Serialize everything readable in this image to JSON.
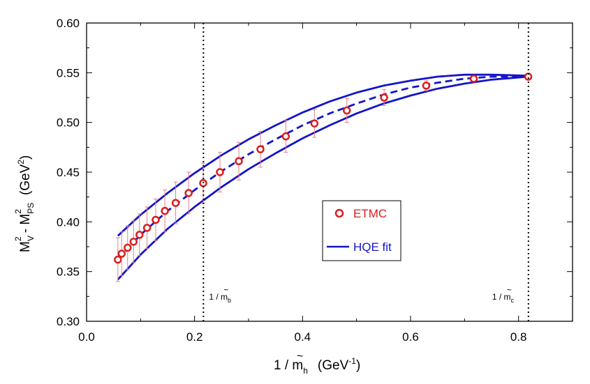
{
  "chart_data": {
    "type": "scatter",
    "xlim": [
      0.0,
      0.9
    ],
    "ylim": [
      0.3,
      0.6
    ],
    "x_ticks": [
      "0.0",
      "0.2",
      "0.4",
      "0.6",
      "0.8"
    ],
    "y_ticks": [
      "0.30",
      "0.35",
      "0.40",
      "0.45",
      "0.50",
      "0.55",
      "0.60"
    ],
    "x_tick_values": [
      0.0,
      0.2,
      0.4,
      0.6,
      0.8
    ],
    "y_tick_values": [
      0.3,
      0.35,
      0.4,
      0.45,
      0.5,
      0.55,
      0.6
    ],
    "xlabel": {
      "pre": "1 / ",
      "tilde": "~",
      "m": "m",
      "m_sub": "h",
      "units_pre": "(GeV",
      "units_sup": "-1",
      "units_post": ")"
    },
    "ylabel": {
      "mv": "M",
      "mv_sub": "V",
      "mv_sup": "2",
      "minus": " - M",
      "mps_sub": "PS",
      "mps_sup": "2",
      "units_pre": "(GeV",
      "units_sup": "2",
      "units_post": ")"
    },
    "vertical_lines": [
      {
        "x": 0.2164,
        "label_pre": "1 / ",
        "label_tilde": "~",
        "label_m": "m",
        "label_sub": "b"
      },
      {
        "x": 0.8183,
        "label_pre": "1 / ",
        "label_tilde": "~",
        "label_m": "m",
        "label_sub": "c"
      }
    ],
    "legend": {
      "etmc": "ETMC",
      "hqe": "HQE fit"
    },
    "colors": {
      "etmc": "#d81e1e",
      "hqe": "#1414c8",
      "errorbar": "#e88080"
    },
    "series": [
      {
        "name": "ETMC",
        "marker": "circle",
        "points": [
          {
            "x": 0.058,
            "y": 0.362,
            "err": 0.022
          },
          {
            "x": 0.065,
            "y": 0.368,
            "err": 0.022
          },
          {
            "x": 0.076,
            "y": 0.374,
            "err": 0.022
          },
          {
            "x": 0.087,
            "y": 0.38,
            "err": 0.021
          },
          {
            "x": 0.098,
            "y": 0.387,
            "err": 0.021
          },
          {
            "x": 0.112,
            "y": 0.394,
            "err": 0.021
          },
          {
            "x": 0.128,
            "y": 0.402,
            "err": 0.021
          },
          {
            "x": 0.145,
            "y": 0.411,
            "err": 0.021
          },
          {
            "x": 0.165,
            "y": 0.419,
            "err": 0.021
          },
          {
            "x": 0.189,
            "y": 0.429,
            "err": 0.021
          },
          {
            "x": 0.216,
            "y": 0.439,
            "err": 0.02
          },
          {
            "x": 0.247,
            "y": 0.45,
            "err": 0.02
          },
          {
            "x": 0.282,
            "y": 0.461,
            "err": 0.019
          },
          {
            "x": 0.322,
            "y": 0.473,
            "err": 0.018
          },
          {
            "x": 0.369,
            "y": 0.486,
            "err": 0.016
          },
          {
            "x": 0.422,
            "y": 0.499,
            "err": 0.014
          },
          {
            "x": 0.482,
            "y": 0.512,
            "err": 0.012
          },
          {
            "x": 0.551,
            "y": 0.525,
            "err": 0.008
          },
          {
            "x": 0.629,
            "y": 0.537,
            "err": 0.005
          },
          {
            "x": 0.717,
            "y": 0.544,
            "err": 0.003
          },
          {
            "x": 0.818,
            "y": 0.546,
            "err": 0.0
          }
        ]
      },
      {
        "name": "HQE fit",
        "style": "dashed",
        "points": [
          [
            0.058,
            0.362
          ],
          [
            0.1,
            0.387
          ],
          [
            0.15,
            0.411
          ],
          [
            0.2,
            0.432
          ],
          [
            0.25,
            0.451
          ],
          [
            0.3,
            0.468
          ],
          [
            0.35,
            0.483
          ],
          [
            0.4,
            0.497
          ],
          [
            0.45,
            0.509
          ],
          [
            0.5,
            0.519
          ],
          [
            0.55,
            0.528
          ],
          [
            0.6,
            0.535
          ],
          [
            0.65,
            0.54
          ],
          [
            0.7,
            0.544
          ],
          [
            0.75,
            0.546
          ],
          [
            0.818,
            0.546
          ]
        ]
      },
      {
        "name": "HQE fit upper band",
        "style": "solid",
        "points": [
          [
            0.058,
            0.386
          ],
          [
            0.1,
            0.407
          ],
          [
            0.15,
            0.429
          ],
          [
            0.2,
            0.449
          ],
          [
            0.25,
            0.467
          ],
          [
            0.3,
            0.483
          ],
          [
            0.35,
            0.497
          ],
          [
            0.4,
            0.51
          ],
          [
            0.45,
            0.521
          ],
          [
            0.5,
            0.53
          ],
          [
            0.55,
            0.537
          ],
          [
            0.6,
            0.542
          ],
          [
            0.65,
            0.546
          ],
          [
            0.7,
            0.548
          ],
          [
            0.75,
            0.548
          ],
          [
            0.818,
            0.547
          ]
        ]
      },
      {
        "name": "HQE fit lower band",
        "style": "solid",
        "points": [
          [
            0.058,
            0.342
          ],
          [
            0.1,
            0.367
          ],
          [
            0.15,
            0.393
          ],
          [
            0.2,
            0.415
          ],
          [
            0.25,
            0.435
          ],
          [
            0.3,
            0.453
          ],
          [
            0.35,
            0.469
          ],
          [
            0.4,
            0.484
          ],
          [
            0.45,
            0.497
          ],
          [
            0.5,
            0.509
          ],
          [
            0.55,
            0.519
          ],
          [
            0.6,
            0.527
          ],
          [
            0.65,
            0.534
          ],
          [
            0.7,
            0.539
          ],
          [
            0.75,
            0.543
          ],
          [
            0.818,
            0.546
          ]
        ]
      }
    ]
  }
}
